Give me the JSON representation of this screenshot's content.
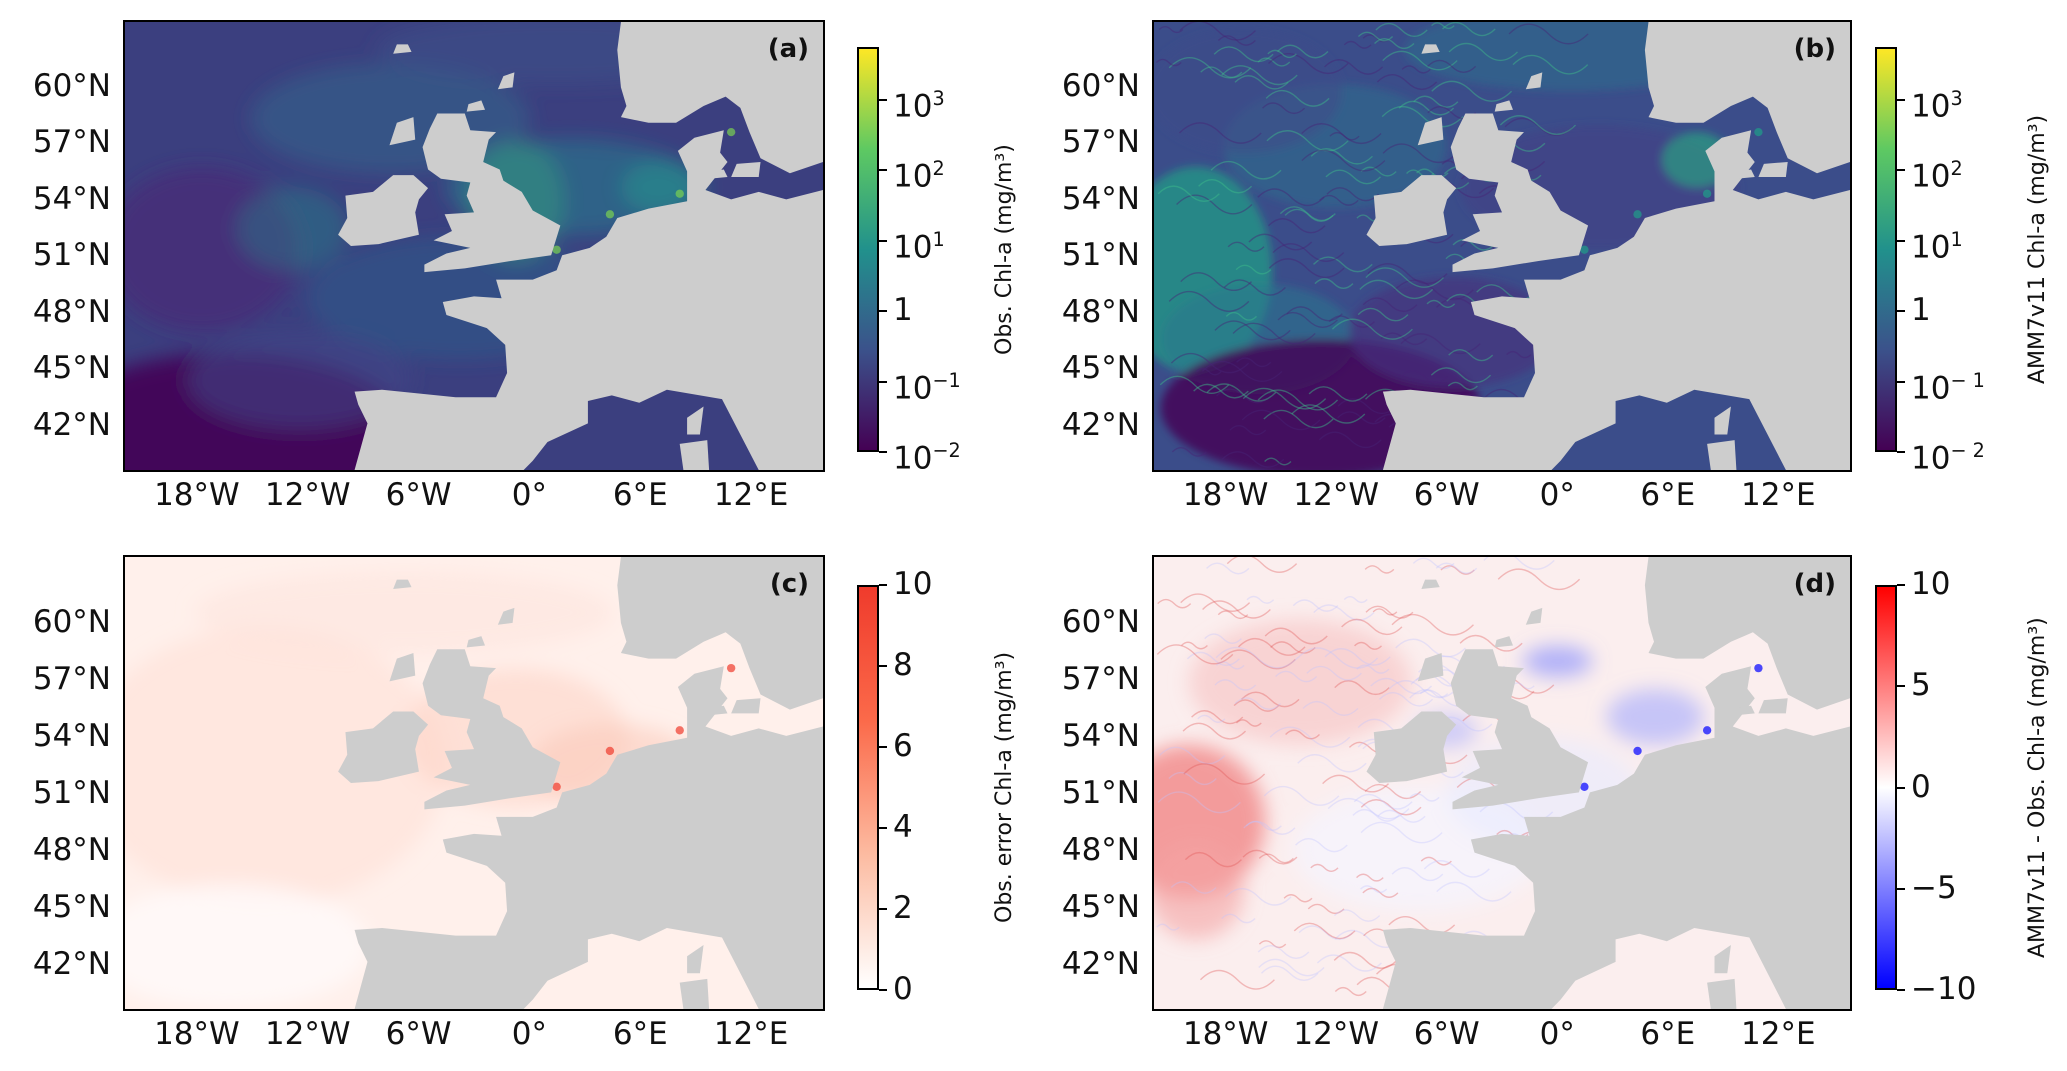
{
  "lat_ticks": [
    "60°N",
    "57°N",
    "54°N",
    "51°N",
    "48°N",
    "45°N",
    "42°N"
  ],
  "lon_ticks": [
    "18°W",
    "12°W",
    "6°W",
    "0°",
    "6°E",
    "12°E"
  ],
  "colors": {
    "land": "#cdcdcd",
    "viridis": [
      "#440154",
      "#3b528b",
      "#21918c",
      "#5ec962",
      "#fde725"
    ],
    "reds": [
      "#ffffff",
      "#fcbba1",
      "#fb6a4a",
      "#ef3b2c"
    ],
    "bwr": [
      "#0000ff",
      "#ffffff",
      "#ff0000"
    ]
  },
  "panels": {
    "a": {
      "tag": "(a)",
      "colorbar_label": "Obs. Chl-a (mg/m³)",
      "cbar_ticks": [
        {
          "base": "10",
          "exp": "3"
        },
        {
          "base": "10",
          "exp": "2"
        },
        {
          "base": "10",
          "exp": "1"
        },
        {
          "base": "1",
          "exp": ""
        },
        {
          "base": "10",
          "exp": "−1"
        },
        {
          "base": "10",
          "exp": "−2"
        }
      ]
    },
    "b": {
      "tag": "(b)",
      "colorbar_label": "AMM7v11 Chl-a (mg/m³)",
      "cbar_ticks": [
        {
          "base": "10",
          "exp": "3"
        },
        {
          "base": "10",
          "exp": "2"
        },
        {
          "base": "10",
          "exp": "1"
        },
        {
          "base": "1",
          "exp": ""
        },
        {
          "base": "10",
          "exp": "− 1"
        },
        {
          "base": "10",
          "exp": "− 2"
        }
      ]
    },
    "c": {
      "tag": "(c)",
      "colorbar_label": "Obs. error Chl-a (mg/m³)",
      "cbar_ticks": [
        "10",
        "8",
        "6",
        "4",
        "2",
        "0"
      ]
    },
    "d": {
      "tag": "(d)",
      "colorbar_label": "AMM7v11 - Obs. Chl-a (mg/m³)",
      "cbar_ticks": [
        "10",
        "5",
        "0",
        "−5",
        "−10"
      ]
    }
  }
}
